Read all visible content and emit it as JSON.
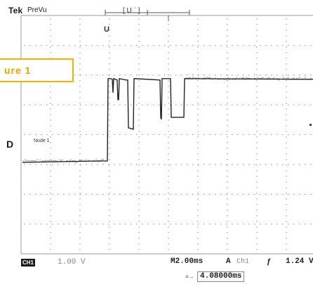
{
  "header": {
    "brand": "Tek",
    "mode": "PreVu",
    "trigger_bracket": "[ U ˈ ]"
  },
  "overlay": {
    "figure_label": "ure 1"
  },
  "markers": {
    "upper": "U",
    "channel_ground": "D",
    "trace_label": "Node 1"
  },
  "status_bar": {
    "channel_badge": "CH1",
    "channel_scale": "1.00 V",
    "timebase": "M2.00ms",
    "trigger_mode": "A",
    "trigger_source": "Ch1",
    "trigger_slope": "ƒ",
    "trigger_level": "1.24 V",
    "delay_icon": "≡→",
    "delay_value": "4.08000ms"
  },
  "waveform": {
    "low_level_fraction": 0.61,
    "high_level_fraction": 0.265,
    "colors": {
      "grid": "#9a9a9a",
      "trace": "#222222",
      "accent": "#f0b400"
    }
  }
}
